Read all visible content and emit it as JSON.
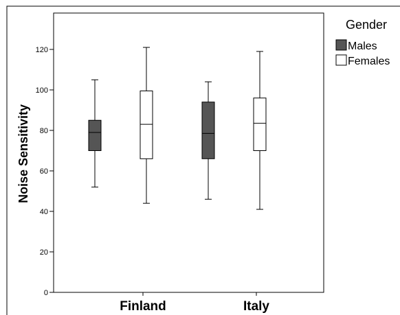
{
  "chart_data": {
    "type": "boxplot",
    "title": "",
    "xlabel": "",
    "ylabel": "Noise Sensitivity",
    "categories": [
      "Finland",
      "Italy"
    ],
    "ylim": [
      0,
      140
    ],
    "yticks": [
      0,
      20,
      40,
      60,
      80,
      100,
      120
    ],
    "grid": false,
    "legend": {
      "title": "Gender",
      "placement": "top-right"
    },
    "series": [
      {
        "name": "Males",
        "color": "#555555",
        "boxes": [
          {
            "category": "Finland",
            "min": 52,
            "q1": 70,
            "median": 79,
            "q3": 85,
            "max": 105
          },
          {
            "category": "Italy",
            "min": 46,
            "q1": 66,
            "median": 78.5,
            "q3": 94,
            "max": 104
          }
        ]
      },
      {
        "name": "Females",
        "color": "#ffffff",
        "boxes": [
          {
            "category": "Finland",
            "min": 44,
            "q1": 66,
            "median": 83,
            "q3": 99.5,
            "max": 121
          },
          {
            "category": "Italy",
            "min": 41,
            "q1": 70,
            "median": 83.5,
            "q3": 96,
            "max": 119
          }
        ]
      }
    ]
  }
}
